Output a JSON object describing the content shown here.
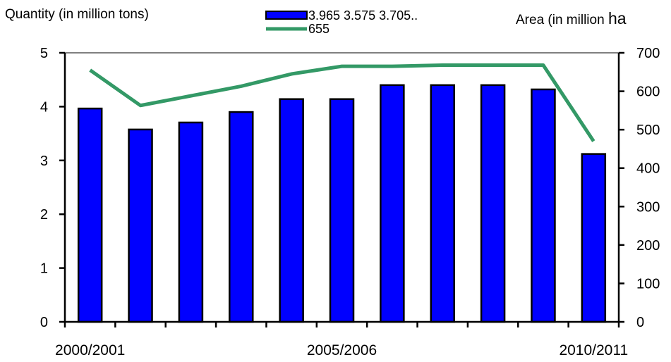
{
  "chart_data": {
    "type": "bar",
    "ylabel_left": "Quantity (in million tons)",
    "ylabel_right_prefix": "Area (in million ",
    "ylabel_right_unit": "ha",
    "categories": [
      "2000/2001",
      "",
      "",
      "",
      "",
      "2005/2006",
      "",
      "",
      "",
      "",
      "2010/2011"
    ],
    "series": [
      {
        "name": "3.965 3.575 3.705..",
        "type": "bar",
        "axis": "left",
        "color": "#0000FF",
        "values": [
          3.965,
          3.575,
          3.705,
          3.9,
          4.14,
          4.14,
          4.4,
          4.4,
          4.4,
          4.32,
          3.12
        ]
      },
      {
        "name": "655",
        "type": "line",
        "axis": "right",
        "color": "#339966",
        "values": [
          655,
          563,
          588,
          613,
          645,
          665,
          665,
          668,
          668,
          668,
          470
        ]
      }
    ],
    "ylim_left": [
      0,
      5
    ],
    "ylim_right": [
      0,
      700
    ],
    "yticks_left": [
      0,
      1,
      2,
      3,
      4,
      5
    ],
    "yticks_right": [
      0,
      100,
      200,
      300,
      400,
      500,
      600,
      700
    ],
    "x_tick_labels": [
      "2000/2001",
      "2005/2006",
      "2010/2011"
    ],
    "grid": false,
    "legend_position": "top-center"
  }
}
